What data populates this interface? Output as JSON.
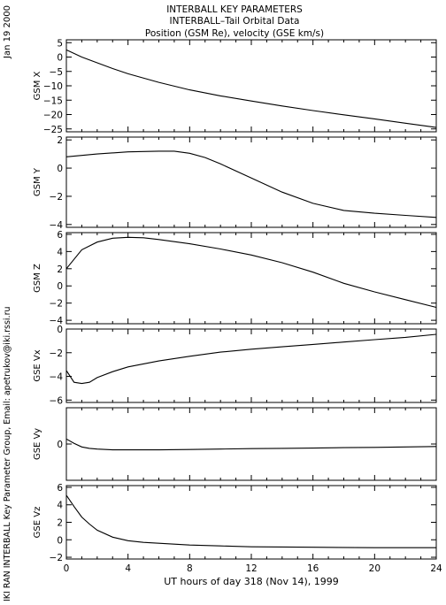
{
  "header": {
    "date_stamp": "Jan 19 2000",
    "title_1": "INTERBALL KEY PARAMETERS",
    "title_2": "INTERBALL–Tail Orbital Data",
    "title_3": "Position (GSM Re), velocity (GSE km/s)"
  },
  "footer": {
    "credit": "IKI RAN INTERBALL Key Parameter Group, Email: apetrukov@iki.rssi.ru"
  },
  "chart_data": {
    "type": "line",
    "x_axis": {
      "label": "UT hours of day 318 (Nov 14), 1999",
      "range": [
        0,
        24
      ],
      "ticks": [
        0,
        4,
        8,
        12,
        16,
        20,
        24
      ]
    },
    "panels": [
      {
        "ylabel": "GSM X",
        "ylim": [
          -26,
          6
        ],
        "yticks": [
          5,
          0,
          -5,
          -10,
          -15,
          -20,
          -25
        ],
        "x": [
          0,
          1,
          2,
          3,
          4,
          6,
          8,
          10,
          12,
          14,
          16,
          18,
          20,
          22,
          24
        ],
        "y": [
          2.5,
          0.0,
          -2.0,
          -4.0,
          -5.8,
          -8.8,
          -11.4,
          -13.5,
          -15.3,
          -17.0,
          -18.6,
          -20.1,
          -21.5,
          -23.0,
          -24.5
        ]
      },
      {
        "ylabel": "GSM Y",
        "ylim": [
          -4.2,
          2.2
        ],
        "yticks": [
          2,
          0,
          -2,
          -4
        ],
        "x": [
          0,
          2,
          4,
          6,
          7,
          8,
          9,
          10,
          12,
          14,
          16,
          18,
          20,
          22,
          24
        ],
        "y": [
          0.8,
          1.0,
          1.15,
          1.2,
          1.2,
          1.05,
          0.75,
          0.3,
          -0.7,
          -1.7,
          -2.5,
          -3.0,
          -3.2,
          -3.35,
          -3.5
        ]
      },
      {
        "ylabel": "GSM Z",
        "ylim": [
          -4.4,
          6.2
        ],
        "yticks": [
          6,
          4,
          2,
          0,
          -2,
          -4
        ],
        "x": [
          0,
          1,
          2,
          3,
          4,
          5,
          6,
          8,
          10,
          12,
          14,
          16,
          18,
          20,
          22,
          24
        ],
        "y": [
          2.0,
          4.2,
          5.1,
          5.55,
          5.65,
          5.6,
          5.4,
          4.9,
          4.3,
          3.6,
          2.7,
          1.6,
          0.3,
          -0.7,
          -1.6,
          -2.5
        ]
      },
      {
        "ylabel": "GSE Vx",
        "ylim": [
          -6.2,
          0
        ],
        "yticks": [
          0,
          -2,
          -4,
          -6
        ],
        "x": [
          0,
          0.5,
          1,
          1.5,
          2,
          3,
          4,
          6,
          8,
          10,
          12,
          14,
          16,
          18,
          20,
          22,
          24
        ],
        "y": [
          -3.5,
          -4.5,
          -4.6,
          -4.5,
          -4.1,
          -3.6,
          -3.2,
          -2.7,
          -2.3,
          -1.95,
          -1.7,
          -1.5,
          -1.3,
          -1.1,
          -0.9,
          -0.7,
          -0.45
        ]
      },
      {
        "ylabel": "GSE Vy",
        "ylim": [
          -2.5,
          2.5
        ],
        "yticks": [
          0
        ],
        "x": [
          0,
          0.5,
          1,
          1.5,
          2,
          3,
          4,
          6,
          8,
          10,
          12,
          14,
          16,
          18,
          20,
          22,
          24
        ],
        "y": [
          0.35,
          0.05,
          -0.2,
          -0.3,
          -0.35,
          -0.4,
          -0.4,
          -0.4,
          -0.38,
          -0.35,
          -0.32,
          -0.3,
          -0.28,
          -0.25,
          -0.23,
          -0.2,
          -0.17
        ]
      },
      {
        "ylabel": "GSE Vz",
        "ylim": [
          -2.2,
          6.2
        ],
        "yticks": [
          6,
          4,
          2,
          0,
          -2
        ],
        "x": [
          0,
          0.5,
          1,
          1.5,
          2,
          3,
          4,
          5,
          6,
          8,
          10,
          12,
          16,
          20,
          24
        ],
        "y": [
          5.1,
          3.8,
          2.6,
          1.8,
          1.1,
          0.3,
          -0.1,
          -0.3,
          -0.4,
          -0.6,
          -0.7,
          -0.8,
          -0.85,
          -0.9,
          -0.9
        ]
      }
    ]
  }
}
